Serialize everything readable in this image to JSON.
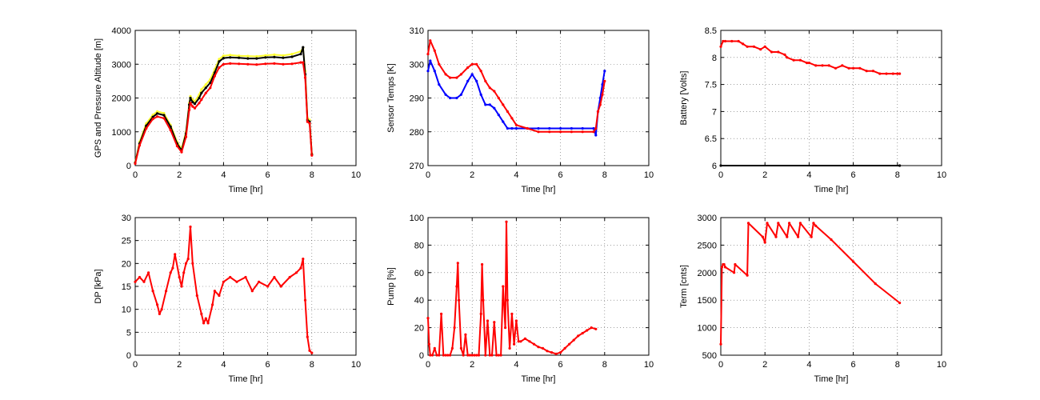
{
  "figure": {
    "background": "#ffffff"
  },
  "chart_data": [
    {
      "type": "line",
      "xlabel": "Time [hr]",
      "ylabel": "GPS and Pressure Altitude [m]",
      "xlim": [
        0,
        10
      ],
      "ylim": [
        0,
        4000
      ],
      "xticks": [
        0,
        2,
        4,
        6,
        8,
        10
      ],
      "yticks": [
        0,
        1000,
        2000,
        3000,
        4000
      ],
      "grid": true,
      "series": [
        {
          "color": "#ffff33",
          "x": [
            0,
            0.2,
            0.5,
            0.8,
            1.0,
            1.3,
            1.6,
            1.9,
            2.1,
            2.3,
            2.45,
            2.5,
            2.6,
            2.7,
            2.9,
            3.0,
            3.2,
            3.4,
            3.6,
            3.8,
            4.0,
            4.3,
            4.7,
            5.1,
            5.5,
            5.9,
            6.3,
            6.7,
            7.1,
            7.5,
            7.6,
            7.7,
            7.8,
            7.9,
            8.0
          ],
          "y": [
            100,
            700,
            1250,
            1500,
            1600,
            1550,
            1200,
            700,
            500,
            1000,
            1850,
            2050,
            1950,
            1900,
            2100,
            2250,
            2400,
            2550,
            2850,
            3150,
            3250,
            3270,
            3250,
            3240,
            3230,
            3260,
            3280,
            3260,
            3300,
            3380,
            3480,
            2800,
            1400,
            1350,
            350
          ]
        },
        {
          "color": "#000000",
          "x": [
            0,
            0.2,
            0.5,
            0.8,
            1.0,
            1.3,
            1.6,
            1.9,
            2.1,
            2.3,
            2.45,
            2.5,
            2.6,
            2.7,
            2.9,
            3.0,
            3.2,
            3.4,
            3.6,
            3.8,
            4.0,
            4.3,
            4.7,
            5.1,
            5.5,
            5.9,
            6.3,
            6.7,
            7.1,
            7.5,
            7.6,
            7.7,
            7.8,
            7.9,
            8.0
          ],
          "y": [
            80,
            650,
            1180,
            1440,
            1540,
            1490,
            1150,
            650,
            450,
            950,
            1800,
            2000,
            1880,
            1830,
            2000,
            2150,
            2300,
            2450,
            2750,
            3080,
            3180,
            3200,
            3190,
            3170,
            3170,
            3200,
            3210,
            3190,
            3220,
            3300,
            3500,
            2700,
            1350,
            1300,
            330
          ]
        },
        {
          "color": "#ff0000",
          "x": [
            0,
            0.2,
            0.5,
            0.8,
            1.0,
            1.3,
            1.6,
            1.9,
            2.1,
            2.3,
            2.45,
            2.5,
            2.6,
            2.7,
            2.9,
            3.0,
            3.2,
            3.4,
            3.6,
            3.8,
            4.0,
            4.3,
            4.7,
            5.1,
            5.5,
            5.9,
            6.3,
            6.7,
            7.1,
            7.5,
            7.6,
            7.7,
            7.8,
            7.9,
            8.0
          ],
          "y": [
            60,
            600,
            1100,
            1380,
            1450,
            1400,
            1050,
            580,
            400,
            850,
            1650,
            1850,
            1750,
            1700,
            1850,
            1950,
            2150,
            2300,
            2650,
            2900,
            3000,
            3020,
            3010,
            3000,
            2990,
            3010,
            3020,
            3000,
            3010,
            3050,
            3050,
            2600,
            1300,
            1250,
            300
          ]
        }
      ]
    },
    {
      "type": "line",
      "xlabel": "Time [hr]",
      "ylabel": "Sensor Temps [K]",
      "xlim": [
        0,
        10
      ],
      "ylim": [
        270,
        310
      ],
      "xticks": [
        0,
        2,
        4,
        6,
        8,
        10
      ],
      "yticks": [
        270,
        280,
        290,
        300,
        310
      ],
      "grid": true,
      "series": [
        {
          "color": "#0000ff",
          "x": [
            0,
            0.1,
            0.3,
            0.5,
            0.8,
            1.0,
            1.3,
            1.5,
            1.8,
            2.0,
            2.2,
            2.4,
            2.6,
            2.8,
            3.0,
            3.2,
            3.4,
            3.6,
            3.8,
            4.0,
            4.5,
            5.0,
            5.5,
            6.0,
            6.5,
            7.0,
            7.5,
            7.6,
            7.7,
            7.8,
            7.9,
            8.0
          ],
          "y": [
            298,
            301,
            298,
            294,
            291,
            290,
            290,
            291,
            295,
            297,
            295,
            291,
            288,
            288,
            287,
            285,
            283,
            281,
            281,
            281,
            281,
            281,
            281,
            281,
            281,
            281,
            281,
            279,
            286,
            290,
            294,
            298
          ]
        },
        {
          "color": "#ff0000",
          "x": [
            0,
            0.1,
            0.3,
            0.5,
            0.8,
            1.0,
            1.3,
            1.5,
            1.8,
            2.0,
            2.2,
            2.4,
            2.6,
            2.8,
            3.0,
            3.2,
            3.4,
            3.6,
            3.8,
            4.0,
            4.5,
            5.0,
            5.5,
            6.0,
            6.5,
            7.0,
            7.5,
            7.6,
            7.7,
            7.8,
            7.9,
            8.0
          ],
          "y": [
            303,
            307,
            304,
            300,
            297,
            296,
            296,
            297,
            299,
            300,
            300,
            298,
            295,
            293,
            292,
            290,
            288,
            286,
            284,
            282,
            281,
            280,
            280,
            280,
            280,
            280,
            280,
            281,
            286,
            288,
            291,
            295
          ]
        }
      ]
    },
    {
      "type": "line",
      "xlabel": "Time [hr]",
      "ylabel": "Battery [Volts]",
      "xlim": [
        0,
        10
      ],
      "ylim": [
        6,
        8.5
      ],
      "xticks": [
        0,
        2,
        4,
        6,
        8,
        10
      ],
      "yticks": [
        6,
        6.5,
        7,
        7.5,
        8,
        8.5
      ],
      "grid": true,
      "series": [
        {
          "color": "#000000",
          "x": [
            0,
            8.1
          ],
          "y": [
            6.0,
            6.0
          ]
        },
        {
          "color": "#ff0000",
          "x": [
            0,
            0.1,
            0.2,
            0.5,
            0.8,
            1.0,
            1.2,
            1.5,
            1.8,
            2.0,
            2.3,
            2.6,
            2.9,
            3.0,
            3.3,
            3.6,
            3.9,
            4.0,
            4.3,
            4.6,
            4.9,
            5.2,
            5.5,
            5.8,
            6.0,
            6.3,
            6.6,
            6.9,
            7.2,
            7.5,
            7.8,
            8.0,
            8.1
          ],
          "y": [
            8.2,
            8.3,
            8.3,
            8.3,
            8.3,
            8.25,
            8.2,
            8.2,
            8.15,
            8.2,
            8.1,
            8.1,
            8.05,
            8.0,
            7.95,
            7.95,
            7.9,
            7.9,
            7.85,
            7.85,
            7.85,
            7.8,
            7.85,
            7.8,
            7.8,
            7.8,
            7.75,
            7.75,
            7.7,
            7.7,
            7.7,
            7.7,
            7.7
          ]
        }
      ]
    },
    {
      "type": "line",
      "xlabel": "Time [hr]",
      "ylabel": "DP [kPa]",
      "xlim": [
        0,
        10
      ],
      "ylim": [
        0,
        30
      ],
      "xticks": [
        0,
        2,
        4,
        6,
        8,
        10
      ],
      "yticks": [
        0,
        5,
        10,
        15,
        20,
        25,
        30
      ],
      "grid": true,
      "series": [
        {
          "color": "#ff0000",
          "x": [
            0,
            0.2,
            0.4,
            0.6,
            0.8,
            1.0,
            1.1,
            1.2,
            1.4,
            1.6,
            1.7,
            1.8,
            2.0,
            2.1,
            2.2,
            2.3,
            2.4,
            2.5,
            2.6,
            2.8,
            3.0,
            3.1,
            3.2,
            3.3,
            3.5,
            3.6,
            3.8,
            4.0,
            4.3,
            4.6,
            5.0,
            5.3,
            5.6,
            6.0,
            6.3,
            6.6,
            7.0,
            7.3,
            7.5,
            7.6,
            7.7,
            7.8,
            7.9,
            8.0
          ],
          "y": [
            16,
            17,
            16,
            18,
            14,
            11,
            9,
            10,
            14,
            18,
            19,
            22,
            17,
            15,
            18,
            20,
            21,
            28,
            20,
            13,
            9,
            7,
            8,
            7,
            11,
            14,
            13,
            16,
            17,
            16,
            17,
            14,
            16,
            15,
            17,
            15,
            17,
            18,
            19,
            21,
            12,
            4,
            1,
            0.5
          ]
        }
      ]
    },
    {
      "type": "line",
      "xlabel": "Time [hr]",
      "ylabel": "Pump [%]",
      "xlim": [
        0,
        10
      ],
      "ylim": [
        0,
        100
      ],
      "xticks": [
        0,
        2,
        4,
        6,
        8,
        10
      ],
      "yticks": [
        0,
        20,
        40,
        60,
        80,
        100
      ],
      "grid": true,
      "series": [
        {
          "color": "#ff0000",
          "x": [
            0,
            0.05,
            0.1,
            0.2,
            0.3,
            0.4,
            0.5,
            0.6,
            0.7,
            0.8,
            0.9,
            1.0,
            1.1,
            1.2,
            1.3,
            1.35,
            1.4,
            1.5,
            1.6,
            1.7,
            1.8,
            1.9,
            2.0,
            2.1,
            2.2,
            2.3,
            2.4,
            2.45,
            2.5,
            2.6,
            2.7,
            2.8,
            2.9,
            3.0,
            3.1,
            3.2,
            3.3,
            3.4,
            3.5,
            3.55,
            3.6,
            3.7,
            3.8,
            3.9,
            4.0,
            4.1,
            4.2,
            4.4,
            4.6,
            4.8,
            5.0,
            5.2,
            5.4,
            5.6,
            5.8,
            6.0,
            6.2,
            6.4,
            6.6,
            6.8,
            7.0,
            7.2,
            7.4,
            7.6
          ],
          "y": [
            27,
            8,
            0,
            0,
            5,
            0,
            0,
            30,
            0,
            0,
            0,
            0,
            5,
            20,
            50,
            67,
            40,
            5,
            0,
            15,
            0,
            0,
            0,
            0,
            0,
            0,
            30,
            66,
            40,
            0,
            25,
            0,
            0,
            24,
            0,
            0,
            0,
            50,
            20,
            97,
            40,
            5,
            30,
            8,
            25,
            10,
            10,
            12,
            10,
            8,
            6,
            5,
            3,
            2,
            1,
            2,
            5,
            8,
            11,
            14,
            16,
            18,
            20,
            19
          ]
        }
      ]
    },
    {
      "type": "line",
      "xlabel": "Time [hr]",
      "ylabel": "Term [cnts]",
      "xlim": [
        0,
        10
      ],
      "ylim": [
        500,
        3000
      ],
      "xticks": [
        0,
        2,
        4,
        6,
        8,
        10
      ],
      "yticks": [
        500,
        1000,
        1500,
        2000,
        2500,
        3000
      ],
      "grid": true,
      "series": [
        {
          "color": "#ff0000",
          "x": [
            0,
            0.05,
            0.1,
            0.15,
            0.2,
            0.6,
            0.65,
            1.2,
            1.25,
            1.9,
            2.0,
            2.1,
            2.5,
            2.6,
            3.0,
            3.1,
            3.5,
            3.6,
            4.1,
            4.2,
            4.3,
            5.0,
            6.0,
            7.0,
            8.1
          ],
          "y": [
            700,
            2100,
            2150,
            2150,
            2100,
            2000,
            2150,
            1950,
            2900,
            2650,
            2550,
            2900,
            2650,
            2900,
            2650,
            2900,
            2650,
            2900,
            2650,
            2900,
            2850,
            2600,
            2200,
            1800,
            1450
          ]
        }
      ]
    }
  ]
}
